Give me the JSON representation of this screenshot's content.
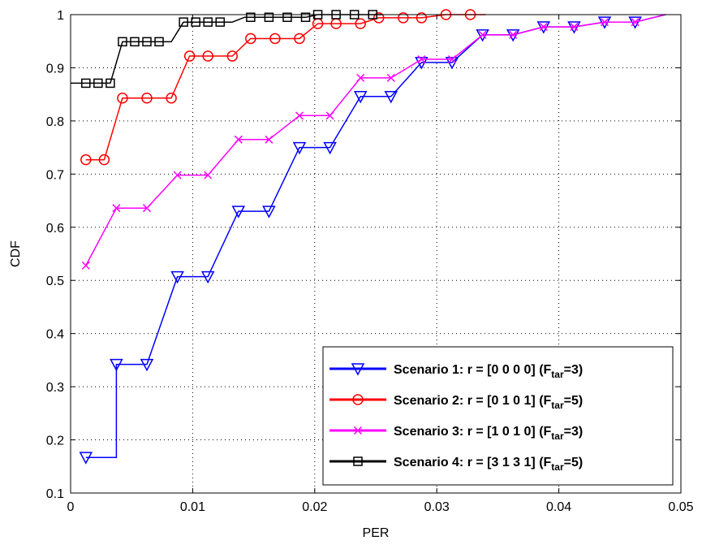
{
  "chart_data": {
    "type": "line",
    "xlabel": "PER",
    "ylabel": "CDF",
    "xlim": [
      0,
      0.05
    ],
    "ylim": [
      0.1,
      1
    ],
    "x_ticks": [
      0,
      0.01,
      0.02,
      0.03,
      0.04,
      0.05
    ],
    "x_tick_labels": [
      "0",
      "0.01",
      "0.02",
      "0.03",
      "0.04",
      "0.05"
    ],
    "y_ticks": [
      0.1,
      0.2,
      0.3,
      0.4,
      0.5,
      0.6,
      0.7,
      0.8,
      0.9,
      1.0
    ],
    "y_tick_labels": [
      "0.1",
      "0.2",
      "0.3",
      "0.4",
      "0.5",
      "0.6",
      "0.7",
      "0.8",
      "0.9",
      "1"
    ],
    "grid": true,
    "legend_position": "bottom-right",
    "series": [
      {
        "legend_main": "Scenario 1: r = [0 0 0 0] (F",
        "legend_sub": "tar",
        "legend_tail": "=3)",
        "color": "#0000ff",
        "marker": "triangle-down",
        "points": [
          [
            0.00125,
            0.167
          ],
          [
            0.00375,
            0.167
          ],
          [
            0.00375,
            0.342
          ],
          [
            0.00625,
            0.342
          ],
          [
            0.00625,
            0.342
          ],
          [
            0.00875,
            0.507
          ],
          [
            0.01125,
            0.507
          ],
          [
            0.01375,
            0.63
          ],
          [
            0.01625,
            0.63
          ],
          [
            0.01875,
            0.75
          ],
          [
            0.02125,
            0.75
          ],
          [
            0.02375,
            0.846
          ],
          [
            0.02625,
            0.846
          ],
          [
            0.02875,
            0.91
          ],
          [
            0.03125,
            0.91
          ],
          [
            0.03375,
            0.962
          ],
          [
            0.03625,
            0.962
          ],
          [
            0.03875,
            0.977
          ],
          [
            0.04125,
            0.977
          ],
          [
            0.04375,
            0.986
          ],
          [
            0.04625,
            0.986
          ],
          [
            0.04875,
            1.0
          ]
        ],
        "marker_points": [
          [
            0.00125,
            0.167
          ],
          [
            0.00375,
            0.342
          ],
          [
            0.00625,
            0.342
          ],
          [
            0.00875,
            0.507
          ],
          [
            0.01125,
            0.507
          ],
          [
            0.01375,
            0.63
          ],
          [
            0.01625,
            0.63
          ],
          [
            0.01875,
            0.75
          ],
          [
            0.02125,
            0.75
          ],
          [
            0.02375,
            0.846
          ],
          [
            0.02625,
            0.846
          ],
          [
            0.02875,
            0.91
          ],
          [
            0.03125,
            0.91
          ],
          [
            0.03375,
            0.962
          ],
          [
            0.03625,
            0.962
          ],
          [
            0.03875,
            0.977
          ],
          [
            0.04125,
            0.977
          ],
          [
            0.04375,
            0.986
          ],
          [
            0.04625,
            0.986
          ]
        ]
      },
      {
        "legend_main": "Scenario 2: r = [0 1 0 1] (F",
        "legend_sub": "tar",
        "legend_tail": "=5)",
        "color": "#ff0000",
        "marker": "circle",
        "points": [
          [
            0.00125,
            0.727
          ],
          [
            0.00275,
            0.727
          ],
          [
            0.00425,
            0.843
          ],
          [
            0.00625,
            0.843
          ],
          [
            0.00825,
            0.843
          ],
          [
            0.00975,
            0.922
          ],
          [
            0.01125,
            0.922
          ],
          [
            0.01325,
            0.922
          ],
          [
            0.01475,
            0.955
          ],
          [
            0.01675,
            0.955
          ],
          [
            0.01875,
            0.955
          ],
          [
            0.02025,
            0.983
          ],
          [
            0.02175,
            0.983
          ],
          [
            0.02375,
            0.983
          ],
          [
            0.02525,
            0.994
          ],
          [
            0.02725,
            0.994
          ],
          [
            0.02875,
            0.994
          ],
          [
            0.03075,
            1.0
          ],
          [
            0.03275,
            1.0
          ],
          [
            0.034,
            1.0
          ]
        ],
        "marker_points": [
          [
            0.00125,
            0.727
          ],
          [
            0.00275,
            0.727
          ],
          [
            0.00425,
            0.843
          ],
          [
            0.00625,
            0.843
          ],
          [
            0.00825,
            0.843
          ],
          [
            0.00975,
            0.922
          ],
          [
            0.01125,
            0.922
          ],
          [
            0.01325,
            0.922
          ],
          [
            0.01475,
            0.955
          ],
          [
            0.01675,
            0.955
          ],
          [
            0.01875,
            0.955
          ],
          [
            0.02025,
            0.983
          ],
          [
            0.02175,
            0.983
          ],
          [
            0.02375,
            0.983
          ],
          [
            0.02525,
            0.994
          ],
          [
            0.02725,
            0.994
          ],
          [
            0.02875,
            0.994
          ],
          [
            0.03075,
            1.0
          ],
          [
            0.03275,
            1.0
          ]
        ]
      },
      {
        "legend_main": "Scenario 3: r = [1 0 1 0] (F",
        "legend_sub": "tar",
        "legend_tail": "=3)",
        "color": "#ff00ff",
        "marker": "x",
        "points": [
          [
            0.00125,
            0.528
          ],
          [
            0.00375,
            0.636
          ],
          [
            0.00625,
            0.636
          ],
          [
            0.00875,
            0.698
          ],
          [
            0.01125,
            0.698
          ],
          [
            0.01375,
            0.765
          ],
          [
            0.01625,
            0.765
          ],
          [
            0.01875,
            0.81
          ],
          [
            0.02125,
            0.81
          ],
          [
            0.02375,
            0.881
          ],
          [
            0.02625,
            0.881
          ],
          [
            0.02875,
            0.916
          ],
          [
            0.03125,
            0.916
          ],
          [
            0.03375,
            0.962
          ],
          [
            0.03625,
            0.962
          ],
          [
            0.03875,
            0.977
          ],
          [
            0.04125,
            0.977
          ],
          [
            0.04375,
            0.986
          ],
          [
            0.04625,
            0.986
          ],
          [
            0.04875,
            1.0
          ]
        ],
        "marker_points": [
          [
            0.00125,
            0.528
          ],
          [
            0.00375,
            0.636
          ],
          [
            0.00625,
            0.636
          ],
          [
            0.00875,
            0.698
          ],
          [
            0.01125,
            0.698
          ],
          [
            0.01375,
            0.765
          ],
          [
            0.01625,
            0.765
          ],
          [
            0.01875,
            0.81
          ],
          [
            0.02125,
            0.81
          ],
          [
            0.02375,
            0.881
          ],
          [
            0.02625,
            0.881
          ],
          [
            0.02875,
            0.916
          ],
          [
            0.03125,
            0.916
          ],
          [
            0.03375,
            0.962
          ],
          [
            0.03625,
            0.962
          ],
          [
            0.03875,
            0.977
          ],
          [
            0.04125,
            0.977
          ],
          [
            0.04375,
            0.986
          ],
          [
            0.04625,
            0.986
          ]
        ]
      },
      {
        "legend_main": "Scenario 4: r = [3 1 3 1] (F",
        "legend_sub": "tar",
        "legend_tail": "=5)",
        "color": "#000000",
        "marker": "square",
        "points": [
          [
            0.0,
            0.871
          ],
          [
            0.00125,
            0.871
          ],
          [
            0.00225,
            0.871
          ],
          [
            0.00325,
            0.871
          ],
          [
            0.00425,
            0.949
          ],
          [
            0.00525,
            0.949
          ],
          [
            0.00625,
            0.949
          ],
          [
            0.00725,
            0.949
          ],
          [
            0.00825,
            0.949
          ],
          [
            0.00925,
            0.986
          ],
          [
            0.01025,
            0.986
          ],
          [
            0.01125,
            0.986
          ],
          [
            0.01225,
            0.986
          ],
          [
            0.01325,
            0.986
          ],
          [
            0.01425,
            0.995
          ],
          [
            0.01625,
            0.995
          ],
          [
            0.01775,
            0.995
          ],
          [
            0.01925,
            0.995
          ],
          [
            0.02025,
            1.0
          ],
          [
            0.02175,
            1.0
          ],
          [
            0.02325,
            1.0
          ],
          [
            0.02475,
            1.0
          ],
          [
            0.0255,
            1.0
          ]
        ],
        "marker_points": [
          [
            0.00125,
            0.871
          ],
          [
            0.00225,
            0.871
          ],
          [
            0.00325,
            0.871
          ],
          [
            0.00425,
            0.949
          ],
          [
            0.00525,
            0.949
          ],
          [
            0.00625,
            0.949
          ],
          [
            0.00725,
            0.949
          ],
          [
            0.00925,
            0.986
          ],
          [
            0.01025,
            0.986
          ],
          [
            0.01125,
            0.986
          ],
          [
            0.01225,
            0.986
          ],
          [
            0.01475,
            0.995
          ],
          [
            0.01625,
            0.995
          ],
          [
            0.01775,
            0.995
          ],
          [
            0.01925,
            0.995
          ],
          [
            0.02025,
            1.0
          ],
          [
            0.02175,
            1.0
          ],
          [
            0.02325,
            1.0
          ],
          [
            0.02475,
            1.0
          ]
        ]
      }
    ]
  }
}
